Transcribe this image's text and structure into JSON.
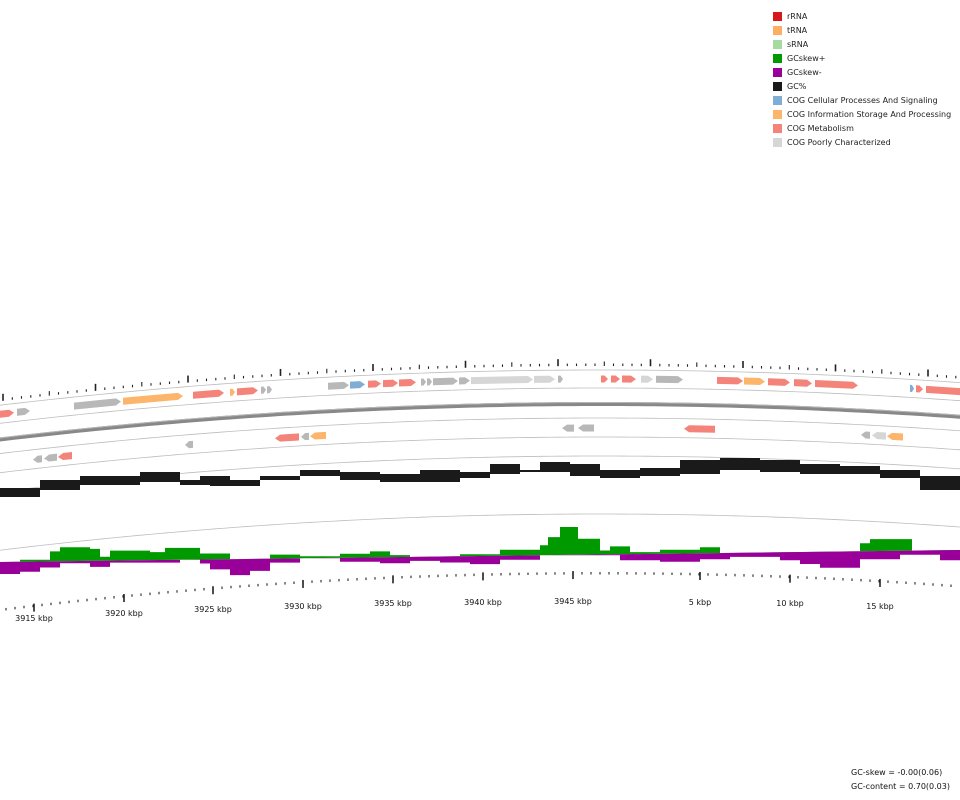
{
  "legend": {
    "items": [
      {
        "label": "rRNA",
        "color": "#d7191c",
        "icon": "rrna-swatch"
      },
      {
        "label": "tRNA",
        "color": "#fdae61",
        "icon": "trna-swatch"
      },
      {
        "label": "sRNA",
        "color": "#a6dba0",
        "icon": "srna-swatch"
      },
      {
        "label": "GCskew+",
        "color": "#009900",
        "icon": "gcskew-plus-swatch"
      },
      {
        "label": "GCskew-",
        "color": "#990099",
        "icon": "gcskew-minus-swatch"
      },
      {
        "label": "GC%",
        "color": "#1a1a1a",
        "icon": "gc-content-swatch"
      },
      {
        "label": "COG Cellular Processes And Signaling",
        "color": "#7fadd4",
        "icon": "cog-cellular-swatch"
      },
      {
        "label": "COG Information Storage And Processing",
        "color": "#fdb46b",
        "icon": "cog-information-swatch"
      },
      {
        "label": "COG Metabolism",
        "color": "#f4837a",
        "icon": "cog-metabolism-swatch"
      },
      {
        "label": "COG Poorly Characterized",
        "color": "#d6d6d6",
        "icon": "cog-poorly-swatch"
      }
    ]
  },
  "axis": {
    "tick_labels": [
      "3915 kbp",
      "3920 kbp",
      "3925 kbp",
      "3930 kbp",
      "3935 kbp",
      "3940 kbp",
      "3945 kbp",
      "5 kbp",
      "10 kbp",
      "15 kbp"
    ]
  },
  "stats": {
    "gc_skew": "GC-skew = -0.00(0.06)",
    "gc_content": "GC-content = 0.70(0.03)"
  },
  "colors": {
    "gc_content": "#1a1a1a",
    "skew_plus": "#009900",
    "skew_minus": "#990099",
    "backbone": "#888888",
    "other_gene": "#b8b8b8"
  },
  "chart_data": {
    "type": "circular-genome-map",
    "tracks": [
      "genes (forward)",
      "genes (reverse)",
      "GC content",
      "GC skew"
    ],
    "gc_content_mean": 0.7,
    "gc_content_sd": 0.03,
    "gc_skew_mean": -0.0,
    "gc_skew_sd": 0.06
  }
}
